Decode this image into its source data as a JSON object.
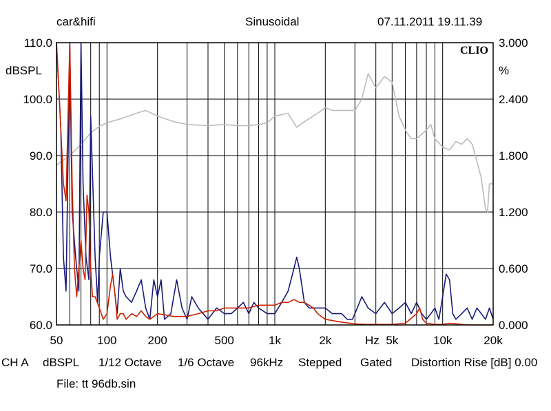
{
  "header": {
    "brand": "car&hifi",
    "mode": "Sinusoidal",
    "timestamp": "07.11.2011 19.11.39",
    "logo": "CLIO"
  },
  "footer": {
    "channel": "CH A",
    "unit": "dBSPL",
    "smoothing1": "1/12 Octave",
    "smoothing2": "1/6 Octave",
    "sample_rate": "96kHz",
    "sweep": "Stepped",
    "window": "Gated",
    "distortion": "Distortion Rise [dB] 0.00",
    "file": "File: tt 96db.sin"
  },
  "colors": {
    "frequency_response": "#bbbbbb",
    "harmonic_a": "#1a1a7a",
    "harmonic_b": "#cc2200",
    "grid": "#000000"
  },
  "chart_data": {
    "type": "line",
    "x_scale": "log",
    "xlim": [
      50,
      20000
    ],
    "ylim": [
      60,
      110
    ],
    "y2lim": [
      0,
      3
    ],
    "ylabel": "dBSPL",
    "y2label": "%",
    "x_unit_label": "Hz",
    "grid": true,
    "x_ticks": [
      {
        "value": 50,
        "label": "50"
      },
      {
        "value": 100,
        "label": "100"
      },
      {
        "value": 200,
        "label": "200"
      },
      {
        "value": 500,
        "label": "500"
      },
      {
        "value": 1000,
        "label": "1k"
      },
      {
        "value": 2000,
        "label": "2k"
      },
      {
        "value": 5000,
        "label": "5k"
      },
      {
        "value": 10000,
        "label": "10k"
      },
      {
        "value": 20000,
        "label": "20k"
      }
    ],
    "y_ticks": [
      {
        "value": 60,
        "label": "60.0"
      },
      {
        "value": 70,
        "label": "70.0"
      },
      {
        "value": 80,
        "label": "80.0"
      },
      {
        "value": 90,
        "label": "90.0"
      },
      {
        "value": 100,
        "label": "100.0"
      },
      {
        "value": 110,
        "label": "110.0"
      }
    ],
    "y2_ticks": [
      {
        "value": 0,
        "label": "0.000"
      },
      {
        "value": 0.6,
        "label": "0.600"
      },
      {
        "value": 1.2,
        "label": "1.200"
      },
      {
        "value": 1.8,
        "label": "1.800"
      },
      {
        "value": 2.4,
        "label": "2.400"
      },
      {
        "value": 3.0,
        "label": "3.000"
      }
    ],
    "series": [
      {
        "color": "#bbbbbb",
        "points": [
          [
            50,
            88.3
          ],
          [
            60,
            90
          ],
          [
            70,
            92
          ],
          [
            80,
            94
          ],
          [
            90,
            95.2
          ],
          [
            100,
            95.8
          ],
          [
            120,
            96.5
          ],
          [
            150,
            97.5
          ],
          [
            170,
            98
          ],
          [
            200,
            97
          ],
          [
            250,
            96
          ],
          [
            300,
            95.5
          ],
          [
            400,
            95.3
          ],
          [
            500,
            95.5
          ],
          [
            600,
            95.3
          ],
          [
            700,
            95.3
          ],
          [
            800,
            95.5
          ],
          [
            900,
            95.8
          ],
          [
            1000,
            97
          ],
          [
            1200,
            97.5
          ],
          [
            1350,
            95
          ],
          [
            1500,
            96
          ],
          [
            1800,
            97.5
          ],
          [
            2000,
            98.5
          ],
          [
            2200,
            98
          ],
          [
            2500,
            98
          ],
          [
            3000,
            98
          ],
          [
            3300,
            100
          ],
          [
            3600,
            104.5
          ],
          [
            4000,
            102
          ],
          [
            4500,
            104
          ],
          [
            5000,
            103
          ],
          [
            5500,
            97
          ],
          [
            6000,
            94.5
          ],
          [
            6500,
            93
          ],
          [
            7000,
            93
          ],
          [
            8000,
            94.5
          ],
          [
            8500,
            95.5
          ],
          [
            9000,
            93
          ],
          [
            10000,
            91.5
          ],
          [
            11000,
            91
          ],
          [
            12000,
            92.5
          ],
          [
            13000,
            92
          ],
          [
            14000,
            93
          ],
          [
            15000,
            92
          ],
          [
            16000,
            89
          ],
          [
            17000,
            86
          ],
          [
            18000,
            80.5
          ],
          [
            18500,
            80
          ],
          [
            19000,
            85
          ],
          [
            20000,
            85
          ]
        ]
      },
      {
        "color": "#1a1a7a",
        "points": [
          [
            50,
            110
          ],
          [
            53,
            95
          ],
          [
            55,
            72
          ],
          [
            57,
            66
          ],
          [
            60,
            110
          ],
          [
            62,
            80
          ],
          [
            65,
            72
          ],
          [
            68,
            66
          ],
          [
            70,
            110
          ],
          [
            72,
            85
          ],
          [
            75,
            72
          ],
          [
            78,
            68
          ],
          [
            80,
            97
          ],
          [
            85,
            72
          ],
          [
            88,
            64
          ],
          [
            90,
            72
          ],
          [
            95,
            80
          ],
          [
            100,
            80
          ],
          [
            105,
            72
          ],
          [
            110,
            67
          ],
          [
            115,
            62
          ],
          [
            120,
            70
          ],
          [
            125,
            66
          ],
          [
            130,
            65
          ],
          [
            140,
            64
          ],
          [
            150,
            66
          ],
          [
            160,
            68
          ],
          [
            170,
            63
          ],
          [
            180,
            61
          ],
          [
            190,
            68
          ],
          [
            200,
            65
          ],
          [
            210,
            68
          ],
          [
            220,
            61
          ],
          [
            240,
            62
          ],
          [
            260,
            68
          ],
          [
            280,
            63
          ],
          [
            300,
            61
          ],
          [
            320,
            65
          ],
          [
            350,
            63
          ],
          [
            400,
            61
          ],
          [
            450,
            63
          ],
          [
            500,
            62
          ],
          [
            550,
            62
          ],
          [
            600,
            63
          ],
          [
            650,
            64
          ],
          [
            700,
            62
          ],
          [
            750,
            64
          ],
          [
            800,
            63
          ],
          [
            900,
            62
          ],
          [
            1000,
            62
          ],
          [
            1100,
            64
          ],
          [
            1200,
            66
          ],
          [
            1300,
            70
          ],
          [
            1350,
            72
          ],
          [
            1400,
            70
          ],
          [
            1500,
            64
          ],
          [
            1600,
            63
          ],
          [
            1800,
            63
          ],
          [
            2000,
            63
          ],
          [
            2200,
            62
          ],
          [
            2500,
            62
          ],
          [
            2700,
            61
          ],
          [
            2900,
            61
          ],
          [
            3000,
            62
          ],
          [
            3300,
            65
          ],
          [
            3600,
            63
          ],
          [
            4000,
            62
          ],
          [
            4500,
            64
          ],
          [
            5000,
            62
          ],
          [
            5500,
            63
          ],
          [
            6000,
            64
          ],
          [
            6500,
            62
          ],
          [
            7000,
            64
          ],
          [
            7500,
            62
          ],
          [
            8000,
            61
          ],
          [
            8500,
            62
          ],
          [
            9000,
            63
          ],
          [
            9500,
            61
          ],
          [
            10000,
            65
          ],
          [
            10500,
            69
          ],
          [
            11000,
            68
          ],
          [
            11500,
            62
          ],
          [
            12000,
            61
          ],
          [
            13000,
            62
          ],
          [
            14000,
            63
          ],
          [
            15000,
            61
          ],
          [
            16000,
            63
          ],
          [
            17000,
            62
          ],
          [
            18000,
            61
          ],
          [
            19000,
            63
          ],
          [
            20000,
            61
          ]
        ]
      },
      {
        "color": "#cc2200",
        "points": [
          [
            50,
            110
          ],
          [
            52,
            100
          ],
          [
            55,
            85
          ],
          [
            57,
            82
          ],
          [
            60,
            110
          ],
          [
            62,
            85
          ],
          [
            64,
            70
          ],
          [
            66,
            65
          ],
          [
            68,
            70
          ],
          [
            70,
            75
          ],
          [
            72,
            70
          ],
          [
            74,
            68
          ],
          [
            76,
            83
          ],
          [
            78,
            80
          ],
          [
            80,
            70
          ],
          [
            82,
            65
          ],
          [
            85,
            65
          ],
          [
            90,
            63
          ],
          [
            95,
            61
          ],
          [
            100,
            62
          ],
          [
            105,
            67
          ],
          [
            108,
            69
          ],
          [
            112,
            65
          ],
          [
            115,
            61
          ],
          [
            120,
            62
          ],
          [
            125,
            62
          ],
          [
            130,
            61
          ],
          [
            140,
            62
          ],
          [
            150,
            61.5
          ],
          [
            160,
            62.5
          ],
          [
            170,
            61.5
          ],
          [
            180,
            61
          ],
          [
            200,
            62
          ],
          [
            250,
            61.5
          ],
          [
            300,
            61.5
          ],
          [
            350,
            62
          ],
          [
            400,
            62.5
          ],
          [
            450,
            62.5
          ],
          [
            500,
            63
          ],
          [
            600,
            63
          ],
          [
            700,
            63
          ],
          [
            800,
            63.5
          ],
          [
            900,
            63.5
          ],
          [
            1000,
            63.5
          ],
          [
            1100,
            64
          ],
          [
            1200,
            64
          ],
          [
            1300,
            64.5
          ],
          [
            1400,
            64
          ],
          [
            1500,
            64
          ],
          [
            1700,
            63
          ],
          [
            1800,
            62
          ],
          [
            2000,
            61
          ],
          [
            2500,
            60.5
          ],
          [
            3000,
            60.2
          ],
          [
            3500,
            60.1
          ],
          [
            4000,
            60.1
          ],
          [
            5000,
            60.1
          ],
          [
            6000,
            60.3
          ],
          [
            7000,
            62
          ],
          [
            7300,
            63
          ],
          [
            7600,
            61
          ],
          [
            8000,
            60.3
          ],
          [
            9000,
            60.1
          ],
          [
            10000,
            60.1
          ],
          [
            11000,
            60.3
          ],
          [
            12000,
            60.2
          ],
          [
            13000,
            60.1
          ],
          [
            14000,
            60
          ],
          [
            15000,
            60
          ],
          [
            20000,
            60
          ]
        ]
      }
    ]
  }
}
